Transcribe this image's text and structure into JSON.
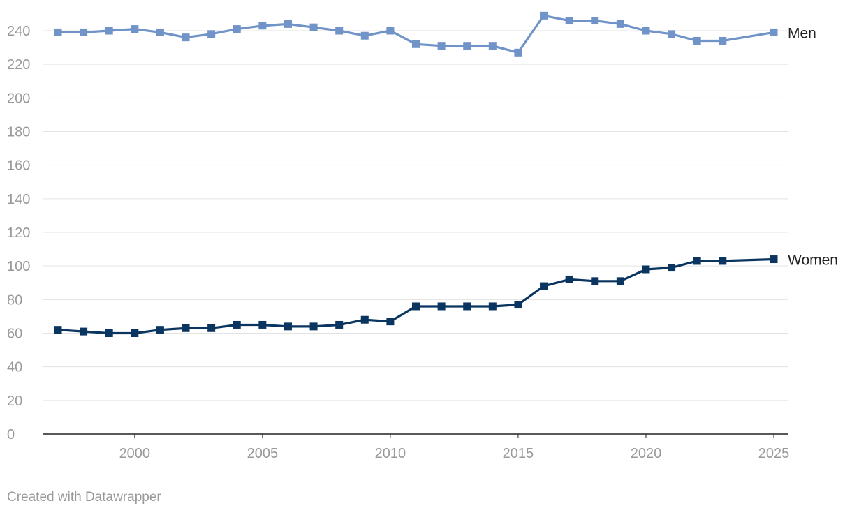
{
  "chart_data": {
    "type": "line",
    "x": [
      1997,
      1998,
      1999,
      2000,
      2001,
      2002,
      2003,
      2004,
      2005,
      2006,
      2007,
      2008,
      2009,
      2010,
      2011,
      2012,
      2013,
      2014,
      2015,
      2016,
      2017,
      2018,
      2019,
      2020,
      2021,
      2022,
      2023,
      2025
    ],
    "series": [
      {
        "name": "Men",
        "color": "#7093C8",
        "values": [
          239,
          239,
          240,
          241,
          239,
          236,
          238,
          241,
          243,
          244,
          242,
          240,
          237,
          240,
          232,
          231,
          231,
          231,
          227,
          249,
          246,
          246,
          244,
          240,
          238,
          234,
          234,
          239
        ]
      },
      {
        "name": "Women",
        "color": "#0A3560",
        "values": [
          62,
          61,
          60,
          60,
          62,
          63,
          63,
          65,
          65,
          64,
          64,
          65,
          68,
          67,
          76,
          76,
          76,
          76,
          77,
          88,
          92,
          91,
          91,
          98,
          99,
          103,
          103,
          104
        ]
      }
    ],
    "y_ticks": [
      0,
      20,
      40,
      60,
      80,
      100,
      120,
      140,
      160,
      180,
      200,
      220,
      240
    ],
    "x_ticks": [
      2000,
      2005,
      2010,
      2015,
      2020,
      2025
    ],
    "xlim": [
      1997,
      2025
    ],
    "ylim": [
      0,
      240
    ],
    "grid": "horizontal",
    "legend": "inline-right",
    "marker": "square"
  },
  "footer": {
    "credit": "Created with Datawrapper"
  }
}
